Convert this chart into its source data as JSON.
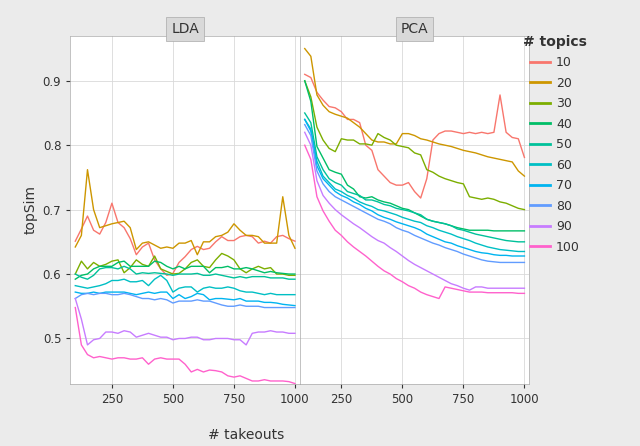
{
  "title_lda": "LDA",
  "title_pca": "PCA",
  "xlabel": "# takeouts",
  "ylabel": "topSim",
  "legend_title": "# topics",
  "topic_labels": [
    10,
    20,
    30,
    40,
    50,
    60,
    70,
    80,
    90,
    100
  ],
  "colors": {
    "10": "#F8766D",
    "20": "#CD9600",
    "30": "#7CAE00",
    "40": "#00BE67",
    "50": "#00C19A",
    "60": "#00BFC4",
    "70": "#00B4F0",
    "80": "#619CFF",
    "90": "#C77CFF",
    "100": "#FF61CC"
  },
  "ylim": [
    0.43,
    0.97
  ],
  "yticks": [
    0.5,
    0.6,
    0.7,
    0.8,
    0.9
  ],
  "background_color": "#EBEBEB",
  "panel_background": "#FFFFFF",
  "grid_color": "#D9D9D9",
  "lda_x": [
    100,
    125,
    150,
    175,
    200,
    225,
    250,
    275,
    300,
    325,
    350,
    375,
    400,
    425,
    450,
    475,
    500,
    525,
    550,
    575,
    600,
    625,
    650,
    675,
    700,
    725,
    750,
    775,
    800,
    825,
    850,
    875,
    900,
    925,
    950,
    975,
    1000
  ],
  "pca_x": [
    100,
    125,
    150,
    175,
    200,
    225,
    250,
    275,
    300,
    325,
    350,
    375,
    400,
    425,
    450,
    475,
    500,
    525,
    550,
    575,
    600,
    625,
    650,
    675,
    700,
    725,
    750,
    775,
    800,
    825,
    850,
    875,
    900,
    925,
    950,
    975,
    1000
  ],
  "lda_data": {
    "10": [
      0.651,
      0.67,
      0.69,
      0.668,
      0.662,
      0.68,
      0.71,
      0.68,
      0.672,
      0.655,
      0.63,
      0.642,
      0.648,
      0.622,
      0.608,
      0.598,
      0.601,
      0.618,
      0.627,
      0.638,
      0.643,
      0.638,
      0.64,
      0.65,
      0.658,
      0.652,
      0.652,
      0.658,
      0.66,
      0.658,
      0.648,
      0.651,
      0.648,
      0.658,
      0.66,
      0.655,
      0.651
    ],
    "20": [
      0.642,
      0.66,
      0.762,
      0.7,
      0.672,
      0.675,
      0.678,
      0.68,
      0.682,
      0.672,
      0.638,
      0.648,
      0.65,
      0.645,
      0.64,
      0.642,
      0.64,
      0.648,
      0.648,
      0.652,
      0.63,
      0.65,
      0.65,
      0.658,
      0.66,
      0.665,
      0.678,
      0.668,
      0.66,
      0.66,
      0.658,
      0.648,
      0.648,
      0.648,
      0.72,
      0.66,
      0.64
    ],
    "30": [
      0.6,
      0.62,
      0.608,
      0.618,
      0.612,
      0.615,
      0.62,
      0.622,
      0.602,
      0.61,
      0.622,
      0.615,
      0.612,
      0.628,
      0.608,
      0.604,
      0.6,
      0.601,
      0.608,
      0.618,
      0.622,
      0.612,
      0.61,
      0.622,
      0.632,
      0.628,
      0.622,
      0.608,
      0.602,
      0.608,
      0.612,
      0.608,
      0.61,
      0.6,
      0.6,
      0.598,
      0.598
    ],
    "40": [
      0.592,
      0.598,
      0.6,
      0.608,
      0.612,
      0.612,
      0.612,
      0.618,
      0.62,
      0.612,
      0.612,
      0.612,
      0.612,
      0.62,
      0.618,
      0.612,
      0.608,
      0.612,
      0.608,
      0.612,
      0.612,
      0.612,
      0.602,
      0.61,
      0.61,
      0.612,
      0.608,
      0.608,
      0.61,
      0.608,
      0.605,
      0.602,
      0.604,
      0.602,
      0.601,
      0.6,
      0.6
    ],
    "50": [
      0.6,
      0.595,
      0.592,
      0.598,
      0.608,
      0.61,
      0.61,
      0.608,
      0.612,
      0.608,
      0.6,
      0.602,
      0.601,
      0.602,
      0.601,
      0.6,
      0.598,
      0.6,
      0.6,
      0.6,
      0.601,
      0.598,
      0.598,
      0.6,
      0.598,
      0.596,
      0.594,
      0.596,
      0.594,
      0.596,
      0.596,
      0.596,
      0.594,
      0.594,
      0.594,
      0.592,
      0.592
    ],
    "60": [
      0.582,
      0.58,
      0.578,
      0.58,
      0.582,
      0.585,
      0.59,
      0.59,
      0.592,
      0.588,
      0.588,
      0.59,
      0.582,
      0.592,
      0.598,
      0.59,
      0.572,
      0.578,
      0.58,
      0.58,
      0.572,
      0.578,
      0.58,
      0.578,
      0.578,
      0.58,
      0.578,
      0.574,
      0.572,
      0.572,
      0.57,
      0.568,
      0.57,
      0.568,
      0.568,
      0.568,
      0.568
    ],
    "70": [
      0.572,
      0.57,
      0.57,
      0.572,
      0.57,
      0.572,
      0.572,
      0.572,
      0.572,
      0.57,
      0.568,
      0.57,
      0.572,
      0.57,
      0.572,
      0.572,
      0.562,
      0.568,
      0.562,
      0.565,
      0.57,
      0.568,
      0.56,
      0.562,
      0.562,
      0.561,
      0.56,
      0.562,
      0.558,
      0.558,
      0.558,
      0.556,
      0.556,
      0.555,
      0.553,
      0.552,
      0.551
    ],
    "80": [
      0.562,
      0.568,
      0.57,
      0.568,
      0.57,
      0.57,
      0.568,
      0.568,
      0.57,
      0.568,
      0.565,
      0.562,
      0.562,
      0.56,
      0.562,
      0.56,
      0.555,
      0.558,
      0.558,
      0.558,
      0.56,
      0.558,
      0.558,
      0.555,
      0.552,
      0.55,
      0.55,
      0.552,
      0.55,
      0.55,
      0.55,
      0.548,
      0.548,
      0.548,
      0.548,
      0.548,
      0.548
    ],
    "90": [
      0.562,
      0.53,
      0.49,
      0.498,
      0.5,
      0.51,
      0.51,
      0.508,
      0.512,
      0.51,
      0.502,
      0.505,
      0.508,
      0.505,
      0.502,
      0.502,
      0.498,
      0.5,
      0.5,
      0.502,
      0.502,
      0.498,
      0.498,
      0.5,
      0.5,
      0.5,
      0.498,
      0.498,
      0.49,
      0.508,
      0.51,
      0.51,
      0.512,
      0.51,
      0.51,
      0.508,
      0.508
    ],
    "100": [
      0.548,
      0.49,
      0.475,
      0.47,
      0.472,
      0.47,
      0.468,
      0.47,
      0.47,
      0.468,
      0.468,
      0.47,
      0.46,
      0.468,
      0.47,
      0.468,
      0.468,
      0.468,
      0.46,
      0.448,
      0.452,
      0.448,
      0.451,
      0.45,
      0.448,
      0.442,
      0.44,
      0.442,
      0.438,
      0.434,
      0.434,
      0.436,
      0.434,
      0.434,
      0.434,
      0.433,
      0.43
    ]
  },
  "pca_data": {
    "10": [
      0.91,
      0.905,
      0.882,
      0.87,
      0.86,
      0.858,
      0.852,
      0.84,
      0.84,
      0.835,
      0.8,
      0.792,
      0.762,
      0.752,
      0.742,
      0.738,
      0.738,
      0.742,
      0.728,
      0.718,
      0.748,
      0.808,
      0.818,
      0.822,
      0.822,
      0.82,
      0.818,
      0.82,
      0.818,
      0.82,
      0.818,
      0.82,
      0.878,
      0.82,
      0.812,
      0.81,
      0.781
    ],
    "20": [
      0.95,
      0.938,
      0.878,
      0.862,
      0.852,
      0.848,
      0.845,
      0.842,
      0.835,
      0.828,
      0.818,
      0.808,
      0.805,
      0.805,
      0.802,
      0.802,
      0.818,
      0.818,
      0.815,
      0.81,
      0.808,
      0.805,
      0.802,
      0.8,
      0.798,
      0.795,
      0.792,
      0.79,
      0.788,
      0.785,
      0.782,
      0.78,
      0.778,
      0.776,
      0.774,
      0.76,
      0.752
    ],
    "30": [
      0.9,
      0.875,
      0.828,
      0.808,
      0.795,
      0.79,
      0.81,
      0.808,
      0.808,
      0.802,
      0.802,
      0.8,
      0.818,
      0.812,
      0.808,
      0.8,
      0.798,
      0.796,
      0.788,
      0.785,
      0.762,
      0.758,
      0.752,
      0.748,
      0.745,
      0.742,
      0.74,
      0.72,
      0.718,
      0.716,
      0.718,
      0.716,
      0.712,
      0.71,
      0.706,
      0.702,
      0.7
    ],
    "40": [
      0.9,
      0.868,
      0.798,
      0.78,
      0.762,
      0.758,
      0.755,
      0.738,
      0.732,
      0.72,
      0.718,
      0.72,
      0.715,
      0.712,
      0.71,
      0.706,
      0.702,
      0.7,
      0.695,
      0.69,
      0.685,
      0.682,
      0.68,
      0.678,
      0.675,
      0.672,
      0.67,
      0.668,
      0.668,
      0.668,
      0.668,
      0.667,
      0.667,
      0.667,
      0.667,
      0.667,
      0.667
    ],
    "50": [
      0.85,
      0.835,
      0.782,
      0.762,
      0.748,
      0.742,
      0.738,
      0.728,
      0.725,
      0.722,
      0.715,
      0.715,
      0.712,
      0.708,
      0.706,
      0.702,
      0.7,
      0.698,
      0.695,
      0.692,
      0.685,
      0.682,
      0.68,
      0.678,
      0.675,
      0.67,
      0.668,
      0.665,
      0.662,
      0.66,
      0.658,
      0.656,
      0.654,
      0.652,
      0.651,
      0.65,
      0.65
    ],
    "60": [
      0.84,
      0.825,
      0.775,
      0.752,
      0.742,
      0.732,
      0.728,
      0.722,
      0.718,
      0.712,
      0.708,
      0.705,
      0.7,
      0.698,
      0.695,
      0.692,
      0.688,
      0.685,
      0.682,
      0.68,
      0.675,
      0.672,
      0.668,
      0.665,
      0.662,
      0.658,
      0.655,
      0.652,
      0.648,
      0.645,
      0.642,
      0.64,
      0.638,
      0.637,
      0.636,
      0.635,
      0.635
    ],
    "70": [
      0.84,
      0.822,
      0.768,
      0.748,
      0.738,
      0.728,
      0.722,
      0.718,
      0.712,
      0.708,
      0.702,
      0.698,
      0.692,
      0.688,
      0.685,
      0.681,
      0.678,
      0.675,
      0.672,
      0.668,
      0.662,
      0.658,
      0.654,
      0.65,
      0.648,
      0.644,
      0.641,
      0.638,
      0.635,
      0.633,
      0.632,
      0.63,
      0.629,
      0.629,
      0.628,
      0.628,
      0.628
    ],
    "80": [
      0.832,
      0.815,
      0.76,
      0.74,
      0.728,
      0.72,
      0.715,
      0.71,
      0.705,
      0.7,
      0.695,
      0.69,
      0.685,
      0.682,
      0.678,
      0.672,
      0.668,
      0.665,
      0.66,
      0.656,
      0.652,
      0.648,
      0.645,
      0.641,
      0.638,
      0.635,
      0.631,
      0.628,
      0.625,
      0.622,
      0.62,
      0.619,
      0.618,
      0.618,
      0.618,
      0.618,
      0.618
    ],
    "90": [
      0.82,
      0.8,
      0.745,
      0.722,
      0.71,
      0.7,
      0.692,
      0.685,
      0.678,
      0.672,
      0.665,
      0.658,
      0.652,
      0.648,
      0.641,
      0.635,
      0.628,
      0.621,
      0.615,
      0.61,
      0.605,
      0.6,
      0.595,
      0.59,
      0.585,
      0.582,
      0.578,
      0.575,
      0.58,
      0.58,
      0.578,
      0.578,
      0.578,
      0.578,
      0.578,
      0.578,
      0.578
    ],
    "100": [
      0.8,
      0.778,
      0.72,
      0.698,
      0.682,
      0.668,
      0.66,
      0.65,
      0.642,
      0.635,
      0.628,
      0.62,
      0.612,
      0.605,
      0.6,
      0.593,
      0.588,
      0.582,
      0.578,
      0.572,
      0.568,
      0.565,
      0.562,
      0.58,
      0.578,
      0.576,
      0.574,
      0.572,
      0.572,
      0.572,
      0.571,
      0.571,
      0.571,
      0.571,
      0.571,
      0.57,
      0.57
    ]
  }
}
